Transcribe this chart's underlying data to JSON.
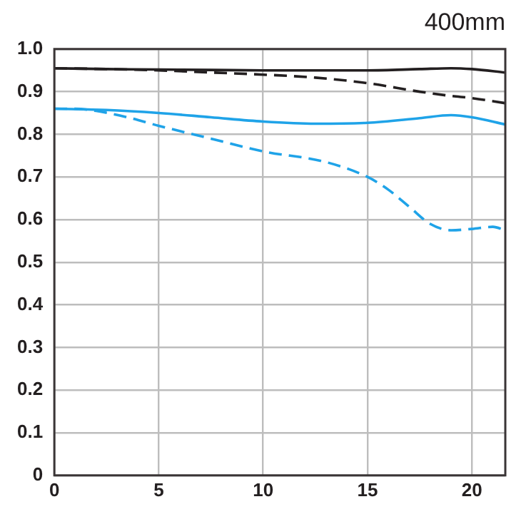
{
  "chart_data": {
    "type": "line",
    "title": "400mm",
    "xlim": [
      0,
      21.6
    ],
    "xticks": [
      0,
      5,
      10,
      15,
      20
    ],
    "ylim": [
      0,
      1
    ],
    "yticks": [
      0,
      0.1,
      0.2,
      0.3,
      0.4,
      0.5,
      0.6,
      0.7,
      0.8,
      0.9,
      {
        "value": 1,
        "label": "1.0"
      }
    ],
    "grid": true,
    "legend": false,
    "marker": "none",
    "x": [
      0,
      2.5,
      5,
      7.5,
      10,
      12.5,
      15,
      17.5,
      19,
      20,
      21.6
    ],
    "series": [
      {
        "color": "#231f20",
        "line_style": "solid",
        "values": [
          0.955,
          0.953,
          0.952,
          0.951,
          0.95,
          0.95,
          0.95,
          0.953,
          0.955,
          0.953,
          0.945
        ]
      },
      {
        "color": "#231f20",
        "line_style": "dashed",
        "values": [
          0.955,
          0.953,
          0.95,
          0.945,
          0.94,
          0.933,
          0.92,
          0.9,
          0.89,
          0.885,
          0.873
        ]
      },
      {
        "color": "#1fa3e8",
        "line_style": "solid",
        "values": [
          0.86,
          0.857,
          0.85,
          0.84,
          0.83,
          0.825,
          0.827,
          0.838,
          0.845,
          0.84,
          0.823
        ]
      },
      {
        "color": "#1fa3e8",
        "line_style": "dashed",
        "x": [
          0,
          1,
          2,
          3.5,
          5,
          7.5,
          10,
          13,
          15,
          16,
          17,
          18,
          19,
          20,
          21,
          21.6
        ],
        "values": [
          0.86,
          0.86,
          0.855,
          0.84,
          0.82,
          0.79,
          0.76,
          0.735,
          0.7,
          0.67,
          0.63,
          0.59,
          0.575,
          0.578,
          0.583,
          0.575
        ]
      }
    ]
  }
}
